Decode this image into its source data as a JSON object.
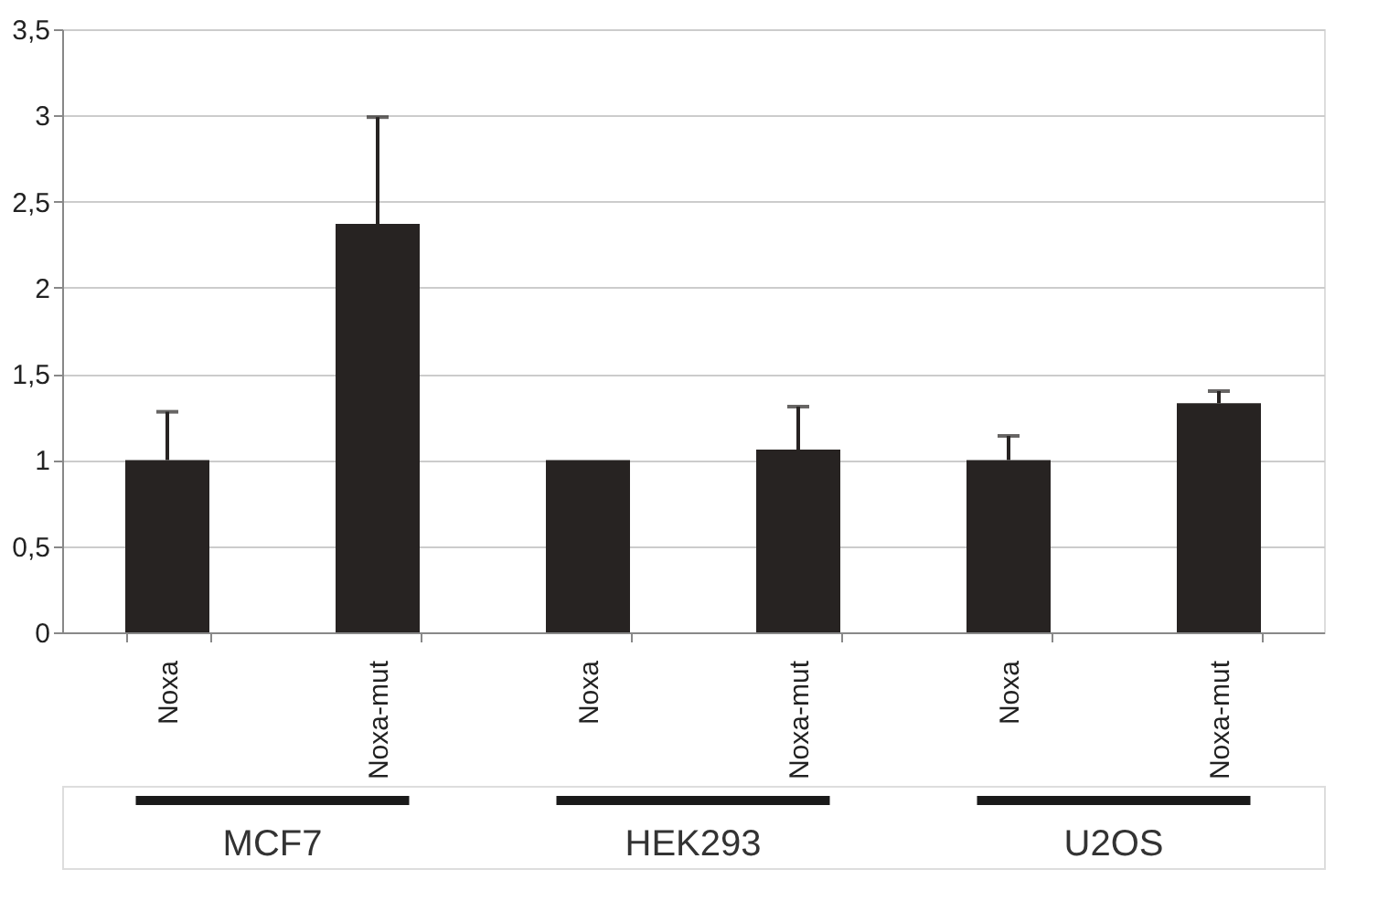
{
  "chart_data": {
    "type": "bar",
    "categories": [
      "Noxa",
      "Noxa-mut",
      "Noxa",
      "Noxa-mut",
      "Noxa",
      "Noxa-mut"
    ],
    "values": [
      1.0,
      2.37,
      1.0,
      1.06,
      1.0,
      1.33
    ],
    "errors": [
      0.28,
      0.62,
      null,
      0.25,
      0.14,
      0.07
    ],
    "color": "#272322",
    "ylim": [
      0,
      3.5
    ],
    "yticks": [
      {
        "value": 0,
        "label": "0"
      },
      {
        "value": 0.5,
        "label": "0,5"
      },
      {
        "value": 1,
        "label": "1"
      },
      {
        "value": 1.5,
        "label": "1,5"
      },
      {
        "value": 2,
        "label": "2"
      },
      {
        "value": 2.5,
        "label": "2,5"
      },
      {
        "value": 3,
        "label": "3"
      },
      {
        "value": 3.5,
        "label": "3,5"
      }
    ],
    "grid": "y",
    "annotations": [
      "MCF7",
      "HEK293",
      "U2OS"
    ]
  }
}
